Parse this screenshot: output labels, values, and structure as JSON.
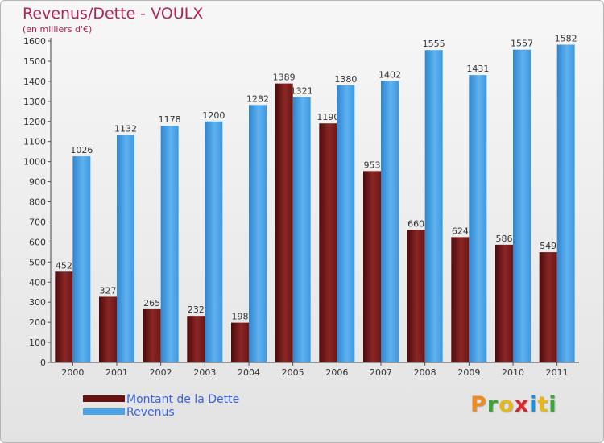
{
  "chart_data": {
    "type": "bar",
    "title": "Revenus/Dette - VOULX",
    "subtitle": "(en milliers d'€)",
    "categories": [
      "2000",
      "2001",
      "2002",
      "2003",
      "2004",
      "2005",
      "2006",
      "2007",
      "2008",
      "2009",
      "2010",
      "2011"
    ],
    "series": [
      {
        "name": "Montant de la Dette",
        "color": "#7a1b1b",
        "values": [
          452,
          327,
          265,
          232,
          198,
          1389,
          1190,
          953,
          660,
          624,
          586,
          549
        ]
      },
      {
        "name": "Revenus",
        "color": "#4aa3e8",
        "values": [
          1026,
          1132,
          1178,
          1200,
          1282,
          1321,
          1380,
          1402,
          1555,
          1431,
          1557,
          1582
        ]
      }
    ],
    "yticks": [
      0,
      100,
      200,
      300,
      400,
      500,
      600,
      700,
      800,
      900,
      1000,
      1100,
      1200,
      1300,
      1400,
      1500,
      1600
    ],
    "ylim": [
      0,
      1600
    ],
    "xlabel": "",
    "ylabel": "",
    "grid": false,
    "legend_position": "bottom-left"
  },
  "brand": {
    "letters": [
      "P",
      "r",
      "o",
      "x",
      "i",
      "t",
      "i"
    ],
    "colors": [
      "#ee8a1f",
      "#3aa63a",
      "#e8b81a",
      "#d8262c",
      "#1a8fd8",
      "#e8b81a",
      "#3aa63a"
    ]
  }
}
